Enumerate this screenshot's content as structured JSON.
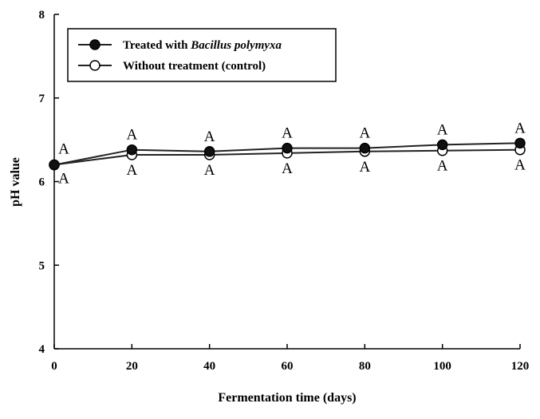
{
  "chart_data": {
    "type": "line",
    "xlabel": "Fermentation time (days)",
    "ylabel": "pH value",
    "xlim": [
      0,
      120
    ],
    "ylim": [
      4,
      8
    ],
    "x_ticks": [
      "0",
      "20",
      "40",
      "60",
      "80",
      "100",
      "120"
    ],
    "y_ticks": [
      "4",
      "5",
      "6",
      "7",
      "8"
    ],
    "grid": false,
    "legend_position": "top-left",
    "x": [
      0,
      20,
      40,
      60,
      80,
      100,
      120
    ],
    "series": [
      {
        "name": "Treated with Bacillus polymyxa",
        "legend_plain": "Treated with ",
        "legend_italic": "Bacillus polymyxa",
        "marker": "filled-circle",
        "values": [
          6.2,
          6.38,
          6.36,
          6.4,
          6.4,
          6.44,
          6.46
        ],
        "annotations": [
          "A",
          "A",
          "A",
          "A",
          "A",
          "A",
          "A"
        ]
      },
      {
        "name": "Without treatment (control)",
        "legend_plain": "Without treatment (control)",
        "legend_italic": "",
        "marker": "open-circle",
        "values": [
          6.2,
          6.32,
          6.32,
          6.34,
          6.36,
          6.37,
          6.38
        ],
        "annotations": [
          "A",
          "A",
          "A",
          "A",
          "A",
          "A",
          "A"
        ]
      }
    ],
    "colors": {
      "line": "#222222",
      "filled_marker": "#111111",
      "open_marker_fill": "#ffffff"
    }
  }
}
